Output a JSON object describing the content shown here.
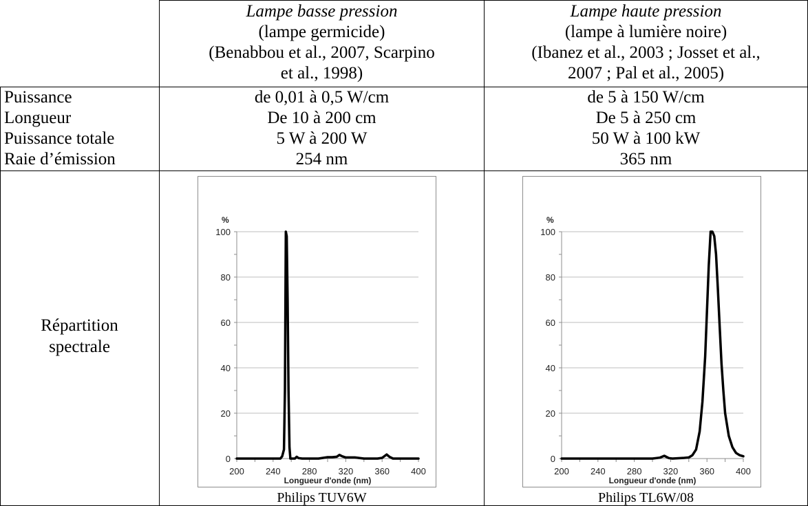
{
  "header": {
    "col1": {
      "title": "Lampe basse pression",
      "subtitle": "(lampe germicide)",
      "ref_line1": "(Benabbou et al., 2007, Scarpino",
      "ref_line2": "et al., 1998)"
    },
    "col2": {
      "title": "Lampe haute pression",
      "subtitle": "(lampe à lumière noire)",
      "ref_line1": "(Ibanez et al., 2003 ; Josset et al.,",
      "ref_line2": "2007 ; Pal et al., 2005)"
    }
  },
  "rows": [
    {
      "label": "Puissance",
      "low": "de 0,01 à 0,5 W/cm",
      "high": "de 5 à 150 W/cm"
    },
    {
      "label": "Longueur",
      "low": "De 10 à 200 cm",
      "high": "De 5 à 250 cm"
    },
    {
      "label": "Puissance totale",
      "low": "5 W à 200 W",
      "high": "50 W à 100 kW"
    },
    {
      "label": "Raie d’émission",
      "low": "254 nm",
      "high": "365 nm"
    }
  ],
  "spectral": {
    "label_line1": "Répartition",
    "label_line2": "spectrale",
    "caption_low": "Philips TUV6W",
    "caption_high": "Philips TL6W/08"
  },
  "chart_data": [
    {
      "type": "line",
      "ylabel": "%",
      "xlabel": "Longueur d'onde (nm)",
      "xlim": [
        200,
        400
      ],
      "ylim": [
        0,
        100
      ],
      "xticks": [
        200,
        240,
        280,
        320,
        360,
        400
      ],
      "yticks": [
        0,
        20,
        40,
        60,
        80,
        100
      ],
      "grid": "horizontal",
      "series": [
        {
          "x": [
            200,
            240,
            248,
            250,
            252,
            253,
            254,
            255,
            256,
            257,
            258,
            259,
            262,
            264,
            266,
            268,
            272,
            290,
            300,
            305,
            310,
            313,
            316,
            320,
            330,
            340,
            355,
            360,
            365,
            368,
            372,
            400
          ],
          "y": [
            0,
            0,
            0,
            1,
            4,
            30,
            100,
            98,
            70,
            30,
            5,
            0,
            0,
            0,
            0.8,
            0.2,
            0,
            0,
            0.6,
            0.6,
            0.8,
            1.6,
            1,
            0.5,
            0.5,
            0,
            0,
            0.3,
            1.8,
            0.8,
            0,
            0
          ]
        }
      ],
      "color": "#000000"
    },
    {
      "type": "line",
      "ylabel": "%",
      "xlabel": "Longueur d'onde (nm)",
      "xlim": [
        200,
        400
      ],
      "ylim": [
        0,
        100
      ],
      "xticks": [
        200,
        240,
        280,
        320,
        360,
        400
      ],
      "yticks": [
        0,
        20,
        40,
        60,
        80,
        100
      ],
      "grid": "horizontal",
      "series": [
        {
          "x": [
            200,
            300,
            308,
            313,
            318,
            322,
            335,
            340,
            344,
            348,
            352,
            355,
            358,
            360,
            362,
            364,
            366,
            368,
            370,
            372,
            374,
            376,
            378,
            380,
            384,
            388,
            392,
            396,
            400
          ],
          "y": [
            0,
            0,
            0.4,
            1.2,
            0.2,
            0,
            0.3,
            0.5,
            1.5,
            4,
            12,
            25,
            45,
            65,
            85,
            100,
            100,
            98,
            90,
            75,
            58,
            42,
            30,
            20,
            10,
            5,
            2.5,
            1.5,
            1
          ]
        }
      ],
      "color": "#000000"
    }
  ]
}
